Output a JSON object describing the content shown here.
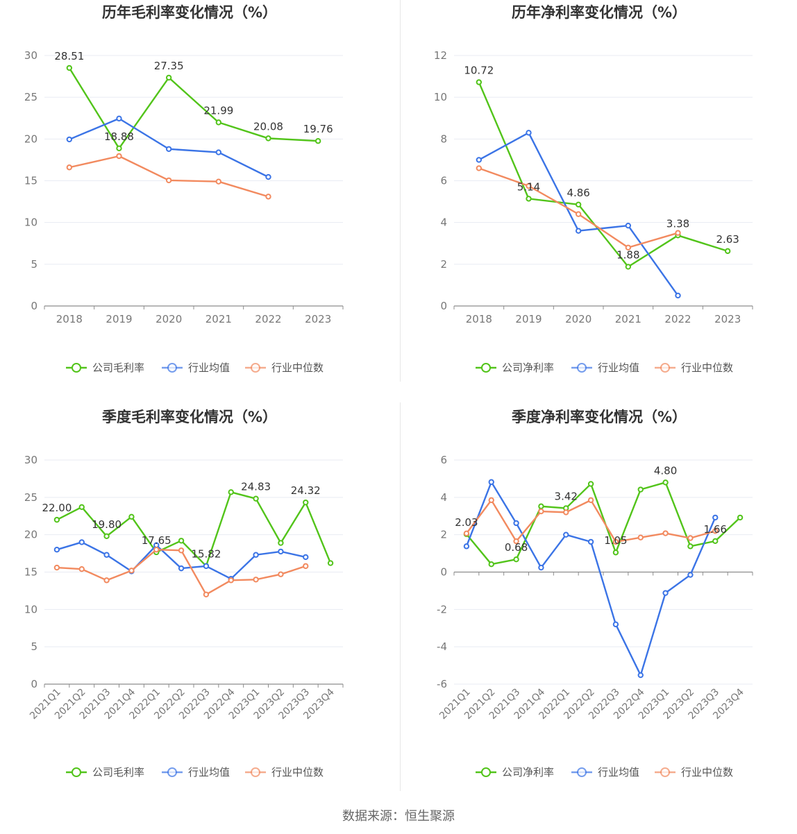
{
  "source_text": "数据来源：恒生聚源",
  "colors": {
    "company": "#52c41a",
    "avg": "#3b74e6",
    "median": "#f28a5f",
    "grid": "#e8ebf3",
    "axis": "#8c8c8c",
    "label": "#333333"
  },
  "chart_data": [
    {
      "type": "line",
      "title": "历年毛利率变化情况（%）",
      "categories": [
        "2018",
        "2019",
        "2020",
        "2021",
        "2022",
        "2023"
      ],
      "ylim": [
        0,
        30
      ],
      "yticks": [
        "0",
        "5",
        "10",
        "15",
        "20",
        "25",
        "30"
      ],
      "legend": [
        "公司毛利率",
        "行业均值",
        "行业中位数"
      ],
      "grid": true,
      "series": [
        {
          "name": "公司毛利率",
          "values": [
            28.51,
            18.88,
            27.35,
            21.99,
            20.08,
            19.76
          ],
          "labels": [
            "28.51",
            "18.88",
            "27.35",
            "21.99",
            "20.08",
            "19.76"
          ]
        },
        {
          "name": "行业均值",
          "values": [
            19.95,
            22.45,
            18.8,
            18.4,
            15.45,
            null
          ]
        },
        {
          "name": "行业中位数",
          "values": [
            16.6,
            17.95,
            15.05,
            14.9,
            13.1,
            null
          ]
        }
      ]
    },
    {
      "type": "line",
      "title": "历年净利率变化情况（%）",
      "categories": [
        "2018",
        "2019",
        "2020",
        "2021",
        "2022",
        "2023"
      ],
      "ylim": [
        0,
        12
      ],
      "yticks": [
        "0",
        "2",
        "4",
        "6",
        "8",
        "10",
        "12"
      ],
      "legend": [
        "公司净利率",
        "行业均值",
        "行业中位数"
      ],
      "grid": true,
      "series": [
        {
          "name": "公司净利率",
          "values": [
            10.72,
            5.14,
            4.86,
            1.88,
            3.38,
            2.63
          ],
          "labels": [
            "10.72",
            "5.14",
            "4.86",
            "1.88",
            "3.38",
            "2.63"
          ]
        },
        {
          "name": "行业均值",
          "values": [
            7.0,
            8.3,
            3.6,
            3.85,
            0.5,
            null
          ]
        },
        {
          "name": "行业中位数",
          "values": [
            6.6,
            5.75,
            4.4,
            2.8,
            3.5,
            null
          ]
        }
      ]
    },
    {
      "type": "line",
      "title": "季度毛利率变化情况（%）",
      "categories": [
        "2021Q1",
        "2021Q2",
        "2021Q3",
        "2021Q4",
        "2022Q1",
        "2022Q2",
        "2022Q3",
        "2022Q4",
        "2023Q1",
        "2023Q2",
        "2023Q3",
        "2023Q4"
      ],
      "ylim": [
        0,
        30
      ],
      "yticks": [
        "0",
        "5",
        "10",
        "15",
        "20",
        "25",
        "30"
      ],
      "legend": [
        "公司毛利率",
        "行业均值",
        "行业中位数"
      ],
      "grid": true,
      "series": [
        {
          "name": "公司毛利率",
          "values": [
            22.0,
            23.7,
            19.8,
            22.4,
            17.65,
            19.2,
            15.82,
            25.7,
            24.83,
            18.9,
            24.32,
            16.2
          ],
          "labels": [
            "22.00",
            "",
            "19.80",
            "",
            "17.65",
            "",
            "15.82",
            "",
            "24.83",
            "",
            "24.32",
            ""
          ]
        },
        {
          "name": "行业均值",
          "values": [
            18.0,
            19.0,
            17.3,
            15.1,
            18.6,
            15.5,
            15.8,
            14.1,
            17.3,
            17.75,
            17.0,
            null
          ]
        },
        {
          "name": "行业中位数",
          "values": [
            15.6,
            15.4,
            13.9,
            15.2,
            18.0,
            17.9,
            12.0,
            13.9,
            14.0,
            14.7,
            15.8,
            null
          ]
        }
      ]
    },
    {
      "type": "line",
      "title": "季度净利率变化情况（%）",
      "categories": [
        "2021Q1",
        "2021Q2",
        "2021Q3",
        "2021Q4",
        "2022Q1",
        "2022Q2",
        "2022Q3",
        "2022Q4",
        "2023Q1",
        "2023Q2",
        "2023Q3",
        "2023Q4"
      ],
      "ylim": [
        -6,
        6
      ],
      "yticks": [
        "-6",
        "-4",
        "-2",
        "0",
        "2",
        "4",
        "6"
      ],
      "legend": [
        "公司净利率",
        "行业均值",
        "行业中位数"
      ],
      "grid": true,
      "series": [
        {
          "name": "公司净利率",
          "values": [
            2.03,
            0.42,
            0.68,
            3.52,
            3.42,
            4.72,
            1.05,
            4.42,
            4.8,
            1.38,
            1.66,
            2.92
          ],
          "labels": [
            "2.03",
            "",
            "0.68",
            "",
            "3.42",
            "",
            "1.05",
            "",
            "4.80",
            "",
            "1.66",
            ""
          ]
        },
        {
          "name": "行业均值",
          "values": [
            1.38,
            4.82,
            2.62,
            0.24,
            2.0,
            1.62,
            -2.8,
            -5.52,
            -1.12,
            -0.15,
            2.92,
            null
          ]
        },
        {
          "name": "行业中位数",
          "values": [
            2.07,
            3.85,
            1.65,
            3.25,
            3.2,
            3.85,
            1.62,
            1.85,
            2.08,
            1.82,
            2.2,
            null
          ]
        }
      ]
    }
  ]
}
